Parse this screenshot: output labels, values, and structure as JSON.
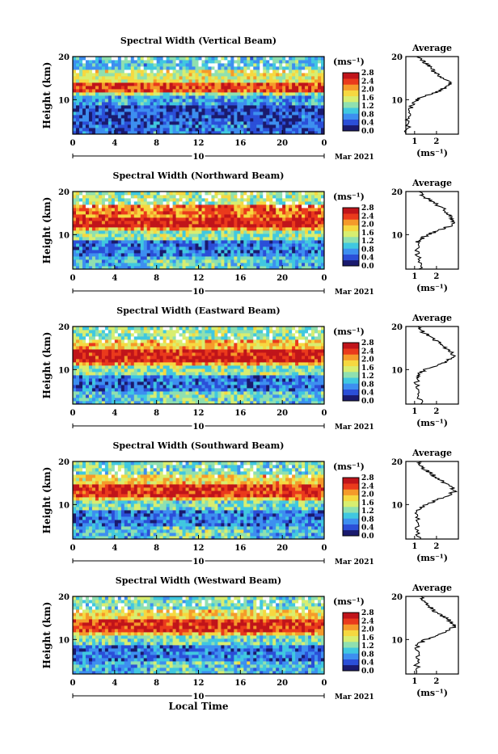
{
  "figure": {
    "date_day": "10",
    "date_month_year": "Mar 2021",
    "x_axis_label": "Local Time",
    "x_ticks": [
      "0",
      "4",
      "8",
      "12",
      "16",
      "20",
      "0"
    ],
    "y_label": "Height (km)",
    "y_ticks": [
      "20",
      "10"
    ],
    "colorbar_unit": "(ms⁻¹)",
    "colorbar_ticks": [
      "2.8",
      "2.4",
      "2.0",
      "1.6",
      "1.2",
      "0.8",
      "0.4",
      "0.0"
    ],
    "profile_title": "Average",
    "profile_unit": "(ms⁻¹)",
    "profile_x_ticks": [
      "1",
      "2"
    ],
    "profile_y_ticks": [
      "20",
      "10"
    ],
    "colors": {
      "scale": [
        "#1a1a6e",
        "#2b4fd8",
        "#3d8ff0",
        "#40c8e0",
        "#8fe0b0",
        "#d8ee70",
        "#f6d840",
        "#f59a2a",
        "#ea3a1c",
        "#c0141a"
      ]
    }
  },
  "chart_data": [
    {
      "type": "heatmap",
      "title": "Spectral Width (Vertical Beam)",
      "xlabel": "",
      "ylabel": "Height (km)",
      "xlim": [
        0,
        24
      ],
      "ylim": [
        2,
        20
      ],
      "value_range": [
        0.0,
        2.8
      ],
      "value_unit": "(ms⁻¹)",
      "layers": [
        {
          "height_km": [
            2,
            9
          ],
          "value": 0.4
        },
        {
          "height_km": [
            9,
            11
          ],
          "value": 0.8
        },
        {
          "height_km": [
            11,
            12
          ],
          "value": 1.4
        },
        {
          "height_km": [
            12,
            14
          ],
          "value": 2.4
        },
        {
          "height_km": [
            14,
            17
          ],
          "value": 1.6
        },
        {
          "height_km": [
            17,
            20
          ],
          "value": 1.0
        }
      ],
      "profile": {
        "title": "Average",
        "height_km": [
          2,
          4,
          6,
          8,
          9,
          10,
          11,
          12,
          13,
          14,
          15,
          16,
          17,
          18,
          19,
          20
        ],
        "value": [
          0.6,
          0.7,
          0.7,
          0.8,
          0.9,
          1.1,
          1.5,
          2.1,
          2.5,
          2.6,
          2.2,
          2.0,
          1.8,
          1.6,
          1.4,
          1.2
        ]
      }
    },
    {
      "type": "heatmap",
      "title": "Spectral Width (Northward Beam)",
      "xlabel": "",
      "ylabel": "Height (km)",
      "xlim": [
        0,
        24
      ],
      "ylim": [
        2,
        20
      ],
      "value_range": [
        0.0,
        2.8
      ],
      "value_unit": "(ms⁻¹)",
      "layers": [
        {
          "height_km": [
            2,
            5
          ],
          "value": 0.9
        },
        {
          "height_km": [
            5,
            9
          ],
          "value": 0.6
        },
        {
          "height_km": [
            9,
            11
          ],
          "value": 1.3
        },
        {
          "height_km": [
            11,
            12
          ],
          "value": 2.0
        },
        {
          "height_km": [
            12,
            14
          ],
          "value": 2.6
        },
        {
          "height_km": [
            14,
            17
          ],
          "value": 2.2
        },
        {
          "height_km": [
            17,
            20
          ],
          "value": 1.4
        }
      ],
      "profile": {
        "title": "Average",
        "height_km": [
          2,
          4,
          6,
          8,
          9,
          10,
          11,
          12,
          13,
          14,
          15,
          16,
          17,
          18,
          19,
          20
        ],
        "value": [
          1.3,
          1.2,
          1.1,
          1.1,
          1.3,
          1.6,
          2.1,
          2.6,
          2.8,
          2.7,
          2.5,
          2.3,
          2.0,
          1.7,
          1.4,
          1.2
        ]
      }
    },
    {
      "type": "heatmap",
      "title": "Spectral Width (Eastward Beam)",
      "xlabel": "",
      "ylabel": "Height (km)",
      "xlim": [
        0,
        24
      ],
      "ylim": [
        2,
        20
      ],
      "value_range": [
        0.0,
        2.8
      ],
      "value_unit": "(ms⁻¹)",
      "layers": [
        {
          "height_km": [
            2,
            5
          ],
          "value": 1.0
        },
        {
          "height_km": [
            5,
            9
          ],
          "value": 0.6
        },
        {
          "height_km": [
            9,
            11
          ],
          "value": 1.3
        },
        {
          "height_km": [
            11,
            12
          ],
          "value": 2.0
        },
        {
          "height_km": [
            12,
            15
          ],
          "value": 2.6
        },
        {
          "height_km": [
            15,
            17
          ],
          "value": 1.9
        },
        {
          "height_km": [
            17,
            20
          ],
          "value": 1.3
        }
      ],
      "profile": {
        "title": "Average",
        "height_km": [
          2,
          4,
          6,
          8,
          9,
          10,
          11,
          12,
          13,
          14,
          15,
          16,
          17,
          18,
          19,
          20
        ],
        "value": [
          1.3,
          1.2,
          1.1,
          1.1,
          1.2,
          1.5,
          2.0,
          2.5,
          2.8,
          2.7,
          2.4,
          2.2,
          1.9,
          1.6,
          1.3,
          1.2
        ]
      }
    },
    {
      "type": "heatmap",
      "title": "Spectral Width (Southward Beam)",
      "xlabel": "",
      "ylabel": "Height (km)",
      "xlim": [
        0,
        24
      ],
      "ylim": [
        2,
        20
      ],
      "value_range": [
        0.0,
        2.8
      ],
      "value_unit": "(ms⁻¹)",
      "layers": [
        {
          "height_km": [
            2,
            5
          ],
          "value": 0.9
        },
        {
          "height_km": [
            5,
            9
          ],
          "value": 0.6
        },
        {
          "height_km": [
            9,
            11
          ],
          "value": 1.2
        },
        {
          "height_km": [
            11,
            12
          ],
          "value": 1.9
        },
        {
          "height_km": [
            12,
            15
          ],
          "value": 2.5
        },
        {
          "height_km": [
            15,
            17
          ],
          "value": 1.8
        },
        {
          "height_km": [
            17,
            20
          ],
          "value": 1.2
        }
      ],
      "profile": {
        "title": "Average",
        "height_km": [
          2,
          4,
          6,
          8,
          9,
          10,
          11,
          12,
          13,
          14,
          15,
          16,
          17,
          18,
          19,
          20
        ],
        "value": [
          1.2,
          1.1,
          1.1,
          1.1,
          1.2,
          1.5,
          2.0,
          2.5,
          2.8,
          2.7,
          2.4,
          2.1,
          1.8,
          1.5,
          1.3,
          1.2
        ]
      }
    },
    {
      "type": "heatmap",
      "title": "Spectral Width (Westward Beam)",
      "xlabel": "Local Time",
      "ylabel": "Height (km)",
      "xlim": [
        0,
        24
      ],
      "ylim": [
        2,
        20
      ],
      "value_range": [
        0.0,
        2.8
      ],
      "value_unit": "(ms⁻¹)",
      "layers": [
        {
          "height_km": [
            2,
            5
          ],
          "value": 0.9
        },
        {
          "height_km": [
            5,
            9
          ],
          "value": 0.6
        },
        {
          "height_km": [
            9,
            11
          ],
          "value": 1.2
        },
        {
          "height_km": [
            11,
            12
          ],
          "value": 1.9
        },
        {
          "height_km": [
            12,
            15
          ],
          "value": 2.5
        },
        {
          "height_km": [
            15,
            17
          ],
          "value": 1.8
        },
        {
          "height_km": [
            17,
            20
          ],
          "value": 1.2
        }
      ],
      "profile": {
        "title": "Average",
        "height_km": [
          2,
          4,
          6,
          8,
          9,
          10,
          11,
          12,
          13,
          14,
          15,
          16,
          17,
          18,
          19,
          20
        ],
        "value": [
          1.2,
          1.1,
          1.1,
          1.1,
          1.2,
          1.5,
          2.0,
          2.5,
          2.8,
          2.7,
          2.4,
          2.1,
          1.8,
          1.6,
          1.4,
          1.3
        ]
      }
    }
  ]
}
